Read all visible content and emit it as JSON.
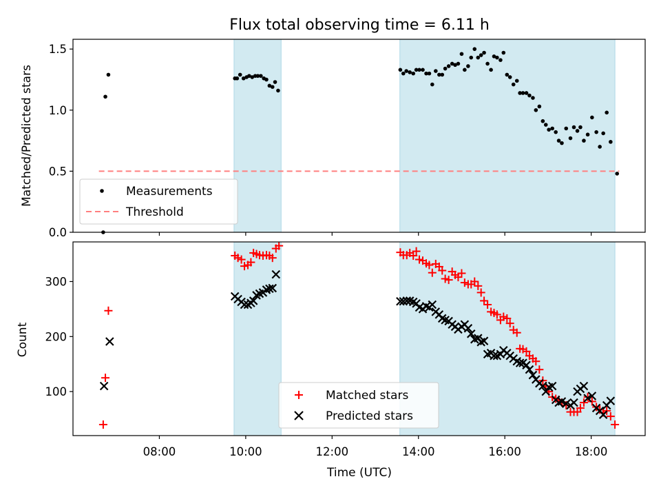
{
  "chart_data": {
    "type": "scatter",
    "title": "Flux total observing time = 6.11 h",
    "xlabel": "Time (UTC)",
    "x_ticks": [
      "08:00",
      "10:00",
      "12:00",
      "14:00",
      "16:00",
      "18:00"
    ],
    "x_range_hours": [
      6.0,
      19.25
    ],
    "shaded_intervals_hours": [
      [
        9.73,
        10.82
      ],
      [
        13.57,
        18.55
      ]
    ],
    "shade_color": "#add8e6",
    "top": {
      "ylabel": "Matched/Predicted stars",
      "ylim": [
        0,
        1.58
      ],
      "y_ticks": [
        "0.0",
        "0.5",
        "1.0",
        "1.5"
      ],
      "threshold": {
        "name": "Threshold",
        "value": 0.5,
        "x_start": 6.6,
        "x_end": 18.65,
        "color": "#ff7f7f"
      },
      "measurements": {
        "name": "Measurements",
        "color": "#000000",
        "points": [
          [
            6.7,
            0.0
          ],
          [
            6.75,
            1.11
          ],
          [
            6.82,
            1.29
          ],
          [
            9.75,
            1.26
          ],
          [
            9.8,
            1.26
          ],
          [
            9.87,
            1.29
          ],
          [
            9.95,
            1.26
          ],
          [
            10.02,
            1.27
          ],
          [
            10.08,
            1.28
          ],
          [
            10.15,
            1.27
          ],
          [
            10.22,
            1.28
          ],
          [
            10.28,
            1.28
          ],
          [
            10.35,
            1.28
          ],
          [
            10.42,
            1.26
          ],
          [
            10.48,
            1.25
          ],
          [
            10.55,
            1.2
          ],
          [
            10.62,
            1.19
          ],
          [
            10.68,
            1.23
          ],
          [
            10.75,
            1.16
          ],
          [
            13.58,
            1.33
          ],
          [
            13.65,
            1.3
          ],
          [
            13.72,
            1.32
          ],
          [
            13.8,
            1.31
          ],
          [
            13.88,
            1.3
          ],
          [
            13.95,
            1.33
          ],
          [
            14.02,
            1.33
          ],
          [
            14.1,
            1.33
          ],
          [
            14.18,
            1.3
          ],
          [
            14.25,
            1.3
          ],
          [
            14.32,
            1.21
          ],
          [
            14.4,
            1.32
          ],
          [
            14.48,
            1.29
          ],
          [
            14.55,
            1.29
          ],
          [
            14.62,
            1.34
          ],
          [
            14.7,
            1.36
          ],
          [
            14.78,
            1.38
          ],
          [
            14.85,
            1.37
          ],
          [
            14.92,
            1.38
          ],
          [
            15.0,
            1.46
          ],
          [
            15.07,
            1.33
          ],
          [
            15.15,
            1.36
          ],
          [
            15.22,
            1.43
          ],
          [
            15.3,
            1.5
          ],
          [
            15.38,
            1.43
          ],
          [
            15.45,
            1.45
          ],
          [
            15.52,
            1.47
          ],
          [
            15.6,
            1.38
          ],
          [
            15.68,
            1.33
          ],
          [
            15.75,
            1.44
          ],
          [
            15.82,
            1.43
          ],
          [
            15.9,
            1.41
          ],
          [
            15.97,
            1.47
          ],
          [
            16.05,
            1.29
          ],
          [
            16.12,
            1.27
          ],
          [
            16.2,
            1.21
          ],
          [
            16.28,
            1.24
          ],
          [
            16.35,
            1.14
          ],
          [
            16.42,
            1.14
          ],
          [
            16.5,
            1.14
          ],
          [
            16.57,
            1.12
          ],
          [
            16.65,
            1.1
          ],
          [
            16.72,
            1.0
          ],
          [
            16.8,
            1.03
          ],
          [
            16.88,
            0.91
          ],
          [
            16.95,
            0.88
          ],
          [
            17.02,
            0.84
          ],
          [
            17.1,
            0.85
          ],
          [
            17.18,
            0.82
          ],
          [
            17.25,
            0.75
          ],
          [
            17.32,
            0.73
          ],
          [
            17.42,
            0.85
          ],
          [
            17.52,
            0.77
          ],
          [
            17.6,
            0.86
          ],
          [
            17.68,
            0.83
          ],
          [
            17.75,
            0.86
          ],
          [
            17.83,
            0.75
          ],
          [
            17.92,
            0.8
          ],
          [
            18.02,
            0.94
          ],
          [
            18.12,
            0.82
          ],
          [
            18.2,
            0.7
          ],
          [
            18.28,
            0.81
          ],
          [
            18.36,
            0.98
          ],
          [
            18.45,
            0.74
          ],
          [
            18.6,
            0.48
          ]
        ]
      }
    },
    "bottom": {
      "ylabel": "Count",
      "ylim": [
        20,
        372
      ],
      "y_ticks": [
        "100",
        "200",
        "300"
      ],
      "matched": {
        "name": "Matched stars",
        "color": "#ff0000",
        "points": [
          [
            6.7,
            40
          ],
          [
            6.75,
            125
          ],
          [
            6.82,
            247
          ],
          [
            9.75,
            347
          ],
          [
            9.82,
            343
          ],
          [
            9.9,
            340
          ],
          [
            9.97,
            328
          ],
          [
            10.05,
            330
          ],
          [
            10.12,
            335
          ],
          [
            10.18,
            352
          ],
          [
            10.25,
            350
          ],
          [
            10.32,
            348
          ],
          [
            10.4,
            347
          ],
          [
            10.48,
            348
          ],
          [
            10.55,
            347
          ],
          [
            10.62,
            343
          ],
          [
            10.7,
            360
          ],
          [
            10.77,
            365
          ],
          [
            13.58,
            353
          ],
          [
            13.65,
            348
          ],
          [
            13.73,
            348
          ],
          [
            13.8,
            352
          ],
          [
            13.88,
            347
          ],
          [
            13.95,
            355
          ],
          [
            14.02,
            340
          ],
          [
            14.1,
            338
          ],
          [
            14.18,
            333
          ],
          [
            14.25,
            330
          ],
          [
            14.32,
            316
          ],
          [
            14.4,
            332
          ],
          [
            14.48,
            327
          ],
          [
            14.55,
            320
          ],
          [
            14.62,
            305
          ],
          [
            14.7,
            303
          ],
          [
            14.78,
            318
          ],
          [
            14.85,
            312
          ],
          [
            14.92,
            308
          ],
          [
            15.0,
            315
          ],
          [
            15.07,
            298
          ],
          [
            15.15,
            295
          ],
          [
            15.22,
            295
          ],
          [
            15.3,
            300
          ],
          [
            15.38,
            292
          ],
          [
            15.45,
            280
          ],
          [
            15.52,
            265
          ],
          [
            15.6,
            258
          ],
          [
            15.68,
            245
          ],
          [
            15.75,
            243
          ],
          [
            15.82,
            240
          ],
          [
            15.9,
            230
          ],
          [
            15.97,
            236
          ],
          [
            16.05,
            233
          ],
          [
            16.12,
            224
          ],
          [
            16.2,
            212
          ],
          [
            16.28,
            207
          ],
          [
            16.35,
            178
          ],
          [
            16.42,
            177
          ],
          [
            16.5,
            173
          ],
          [
            16.57,
            165
          ],
          [
            16.65,
            160
          ],
          [
            16.72,
            155
          ],
          [
            16.8,
            140
          ],
          [
            16.88,
            120
          ],
          [
            16.95,
            110
          ],
          [
            17.02,
            100
          ],
          [
            17.1,
            90
          ],
          [
            17.18,
            87
          ],
          [
            17.25,
            85
          ],
          [
            17.32,
            80
          ],
          [
            17.42,
            75
          ],
          [
            17.52,
            63
          ],
          [
            17.6,
            63
          ],
          [
            17.68,
            63
          ],
          [
            17.75,
            70
          ],
          [
            17.83,
            80
          ],
          [
            17.92,
            90
          ],
          [
            18.02,
            82
          ],
          [
            18.12,
            72
          ],
          [
            18.2,
            67
          ],
          [
            18.28,
            62
          ],
          [
            18.36,
            65
          ],
          [
            18.45,
            55
          ],
          [
            18.55,
            40
          ]
        ]
      },
      "predicted": {
        "name": "Predicted stars",
        "color": "#000000",
        "points": [
          [
            6.72,
            110
          ],
          [
            6.85,
            191
          ],
          [
            9.75,
            273
          ],
          [
            9.82,
            268
          ],
          [
            9.9,
            263
          ],
          [
            9.97,
            258
          ],
          [
            10.05,
            258
          ],
          [
            10.12,
            261
          ],
          [
            10.18,
            265
          ],
          [
            10.25,
            275
          ],
          [
            10.32,
            278
          ],
          [
            10.4,
            280
          ],
          [
            10.48,
            285
          ],
          [
            10.55,
            287
          ],
          [
            10.62,
            288
          ],
          [
            10.7,
            313
          ],
          [
            13.58,
            264
          ],
          [
            13.65,
            264
          ],
          [
            13.73,
            265
          ],
          [
            13.8,
            265
          ],
          [
            13.88,
            263
          ],
          [
            13.95,
            260
          ],
          [
            14.02,
            253
          ],
          [
            14.1,
            250
          ],
          [
            14.18,
            255
          ],
          [
            14.25,
            253
          ],
          [
            14.32,
            258
          ],
          [
            14.4,
            245
          ],
          [
            14.48,
            240
          ],
          [
            14.55,
            233
          ],
          [
            14.62,
            230
          ],
          [
            14.7,
            228
          ],
          [
            14.78,
            222
          ],
          [
            14.85,
            218
          ],
          [
            14.92,
            213
          ],
          [
            15.0,
            218
          ],
          [
            15.07,
            222
          ],
          [
            15.15,
            215
          ],
          [
            15.22,
            205
          ],
          [
            15.3,
            195
          ],
          [
            15.38,
            197
          ],
          [
            15.45,
            190
          ],
          [
            15.52,
            192
          ],
          [
            15.6,
            168
          ],
          [
            15.68,
            170
          ],
          [
            15.75,
            165
          ],
          [
            15.82,
            165
          ],
          [
            15.9,
            168
          ],
          [
            15.97,
            175
          ],
          [
            16.05,
            170
          ],
          [
            16.12,
            165
          ],
          [
            16.2,
            160
          ],
          [
            16.28,
            155
          ],
          [
            16.35,
            152
          ],
          [
            16.42,
            152
          ],
          [
            16.5,
            148
          ],
          [
            16.57,
            140
          ],
          [
            16.65,
            130
          ],
          [
            16.72,
            122
          ],
          [
            16.8,
            115
          ],
          [
            16.88,
            110
          ],
          [
            16.95,
            100
          ],
          [
            17.02,
            108
          ],
          [
            17.1,
            110
          ],
          [
            17.18,
            85
          ],
          [
            17.25,
            80
          ],
          [
            17.32,
            82
          ],
          [
            17.42,
            78
          ],
          [
            17.52,
            75
          ],
          [
            17.6,
            80
          ],
          [
            17.68,
            100
          ],
          [
            17.75,
            105
          ],
          [
            17.83,
            110
          ],
          [
            17.92,
            88
          ],
          [
            18.02,
            92
          ],
          [
            18.12,
            70
          ],
          [
            18.2,
            65
          ],
          [
            18.28,
            58
          ],
          [
            18.36,
            75
          ],
          [
            18.45,
            83
          ]
        ]
      }
    },
    "legend_top": {
      "placement": "lower-left"
    },
    "legend_bottom": {
      "placement": "lower-center"
    }
  }
}
